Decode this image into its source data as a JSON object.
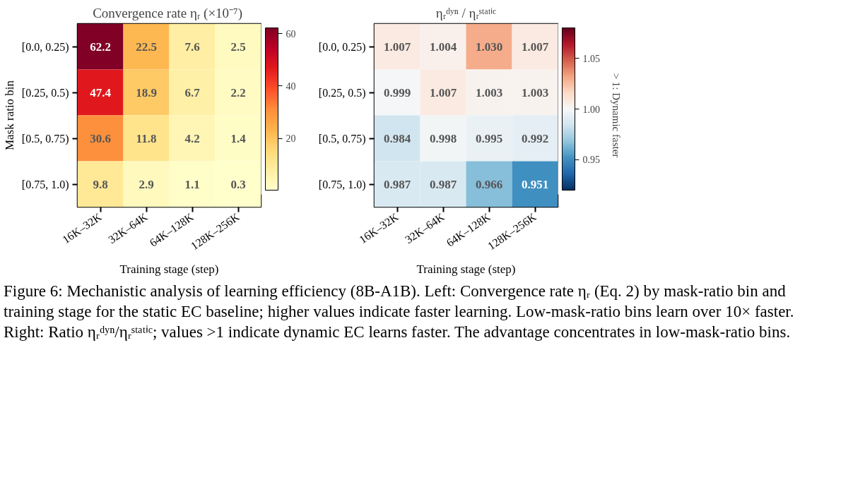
{
  "chart_data": [
    {
      "type": "heatmap",
      "title": "Convergence rate ηᵣ  (×10⁻⁷)",
      "xlabel": "Training stage (step)",
      "ylabel": "Mask ratio bin",
      "categories": [
        "16K–32K",
        "32K–64K",
        "64K–128K",
        "128K–256K"
      ],
      "y_categories": [
        "[0.0, 0.25)",
        "[0.25, 0.5)",
        "[0.5, 0.75)",
        "[0.75, 1.0)"
      ],
      "cells": [
        [
          62.2,
          22.5,
          7.6,
          2.5
        ],
        [
          47.4,
          18.9,
          6.7,
          2.2
        ],
        [
          30.6,
          11.8,
          4.2,
          1.4
        ],
        [
          9.8,
          2.9,
          1.1,
          0.3
        ]
      ],
      "data_labels": true,
      "clim": [
        0.3,
        62.2
      ],
      "cticks": [
        20,
        40,
        60
      ],
      "grid": false,
      "annotations": [
        "Figure 6: Mechanistic analysis of learning efficiency (8B-A1B). Left: Convergence rate ηᵣ (Eq. 2) by mask-ratio bin and training stage for the static EC baseline; higher values indicate faster learning.  Low-mask-ratio bins learn over 10× faster.  Right: Ratio ηᵣᵈʸⁿ/ηᵣˢᵗᵃᵗⁱᶜ; values >1 indicate dynamic EC learns faster. The advantage concentrates in low-mask-ratio bins."
      ]
    },
    {
      "type": "heatmap",
      "title": "ηᵣᵈʸⁿ / ηᵣˢᵗᵃᵗⁱᶜ",
      "xlabel": "Training stage (step)",
      "clabel": "> 1: Dynamic faster",
      "categories": [
        "16K–32K",
        "32K–64K",
        "64K–128K",
        "128K–256K"
      ],
      "y_categories": [
        "[0.0, 0.25)",
        "[0.25, 0.5)",
        "[0.5, 0.75)",
        "[0.75, 1.0)"
      ],
      "cells": [
        [
          1.007,
          1.004,
          1.03,
          1.007
        ],
        [
          0.999,
          1.007,
          1.003,
          1.003
        ],
        [
          0.984,
          0.998,
          0.995,
          0.992
        ],
        [
          0.987,
          0.987,
          0.966,
          0.951
        ]
      ],
      "cell_labels": [
        [
          "1.007",
          "1.004",
          "1.030",
          "1.007"
        ],
        [
          "0.999",
          "1.007",
          "1.003",
          "1.003"
        ],
        [
          "0.984",
          "0.998",
          "0.995",
          "0.992"
        ],
        [
          "0.987",
          "0.987",
          "0.966",
          "0.951"
        ]
      ],
      "clim": [
        0.92,
        1.08
      ],
      "cticks": [
        {
          "value": 0.95,
          "label": "0.95"
        },
        {
          "value": 1,
          "label": "1.00"
        },
        {
          "value": 1.05,
          "label": "1.05"
        }
      ],
      "grid": false
    }
  ]
}
